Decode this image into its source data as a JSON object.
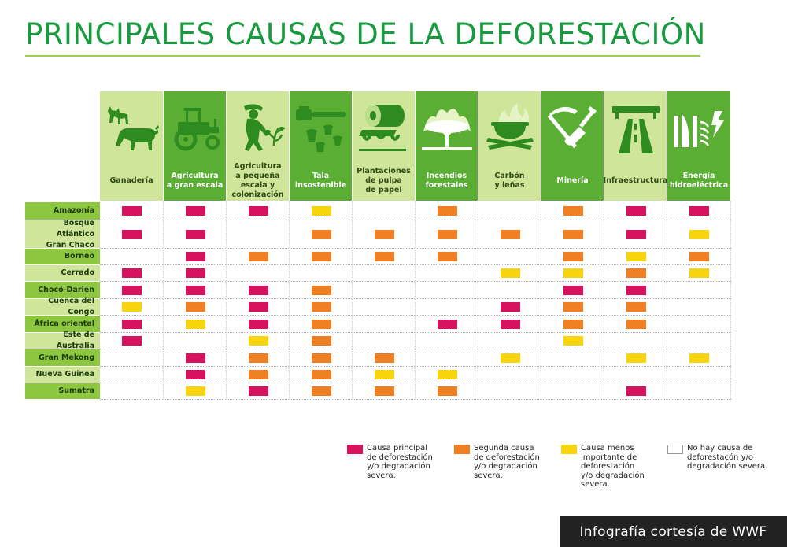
{
  "title": "PRINCIPALES CAUSAS DE LA DEFORESTACIÓN",
  "colors": {
    "principal": "#d7125e",
    "segunda": "#ef7f22",
    "menos": "#f7d40e",
    "title": "#189a3e",
    "header_dark": "#5aae33",
    "header_light": "#cfe69a"
  },
  "columns": [
    {
      "label": "Ganadería",
      "icon": "livestock-icon"
    },
    {
      "label": "Agricultura\na gran escala",
      "icon": "tractor-icon"
    },
    {
      "label": "Agricultura\na pequeña\nescala y\ncolonización",
      "icon": "farmer-icon"
    },
    {
      "label": "Tala\ninsostenible",
      "icon": "chainsaw-icon"
    },
    {
      "label": "Plantaciones\nde pulpa\nde papel",
      "icon": "paper-roll-icon"
    },
    {
      "label": "Incendios\nforestales",
      "icon": "forest-fire-icon"
    },
    {
      "label": "Carbón\ny leñas",
      "icon": "charcoal-pot-icon"
    },
    {
      "label": "Minería",
      "icon": "pickaxe-shovel-icon"
    },
    {
      "label": "Infraestructura",
      "icon": "highway-icon"
    },
    {
      "label": "Energía\nhidroeléctrica",
      "icon": "hydro-dam-icon"
    }
  ],
  "rows": [
    {
      "label": "Amazonía",
      "cells": [
        "principal",
        "principal",
        "principal",
        "menos",
        "",
        "segunda",
        "",
        "segunda",
        "principal",
        "principal"
      ]
    },
    {
      "label": "Bosque Atlántico\nGran Chaco",
      "cells": [
        "principal",
        "principal",
        "",
        "segunda",
        "segunda",
        "segunda",
        "segunda",
        "segunda",
        "principal",
        "menos"
      ]
    },
    {
      "label": "Borneo",
      "cells": [
        "",
        "principal",
        "segunda",
        "segunda",
        "segunda",
        "segunda",
        "",
        "segunda",
        "menos",
        "segunda"
      ]
    },
    {
      "label": "Cerrado",
      "cells": [
        "principal",
        "principal",
        "",
        "",
        "",
        "",
        "menos",
        "menos",
        "segunda",
        "menos"
      ]
    },
    {
      "label": "Chocó-Darién",
      "cells": [
        "principal",
        "principal",
        "principal",
        "segunda",
        "",
        "",
        "",
        "principal",
        "principal",
        ""
      ]
    },
    {
      "label": "Cuenca del Congo",
      "cells": [
        "menos",
        "segunda",
        "principal",
        "segunda",
        "",
        "",
        "principal",
        "segunda",
        "segunda",
        ""
      ]
    },
    {
      "label": "África oriental",
      "cells": [
        "principal",
        "menos",
        "principal",
        "segunda",
        "",
        "principal",
        "principal",
        "segunda",
        "segunda",
        ""
      ]
    },
    {
      "label": "Este de Australia",
      "cells": [
        "principal",
        "",
        "menos",
        "segunda",
        "",
        "",
        "",
        "menos",
        "",
        ""
      ]
    },
    {
      "label": "Gran Mekong",
      "cells": [
        "",
        "principal",
        "segunda",
        "segunda",
        "segunda",
        "",
        "menos",
        "",
        "menos",
        "menos"
      ]
    },
    {
      "label": "Nueva Guinea",
      "cells": [
        "",
        "principal",
        "segunda",
        "segunda",
        "menos",
        "menos",
        "",
        "",
        "",
        ""
      ]
    },
    {
      "label": "Sumatra",
      "cells": [
        "",
        "menos",
        "principal",
        "segunda",
        "segunda",
        "segunda",
        "",
        "",
        "principal",
        ""
      ]
    }
  ],
  "legend": [
    {
      "key": "principal",
      "text": "Causa principal\nde deforestación\ny/o degradación\nsevera."
    },
    {
      "key": "segunda",
      "text": "Segunda causa\nde deforestación\ny/o degradación\nsevera."
    },
    {
      "key": "menos",
      "text": "Causa menos\nimportante de\ndeforestación\ny/o degradación\nsevera."
    },
    {
      "key": "none",
      "text": "No hay causa de\ndeforestacón y/o\ndegradación severa."
    }
  ],
  "credit": "Infografía cortesía de WWF"
}
